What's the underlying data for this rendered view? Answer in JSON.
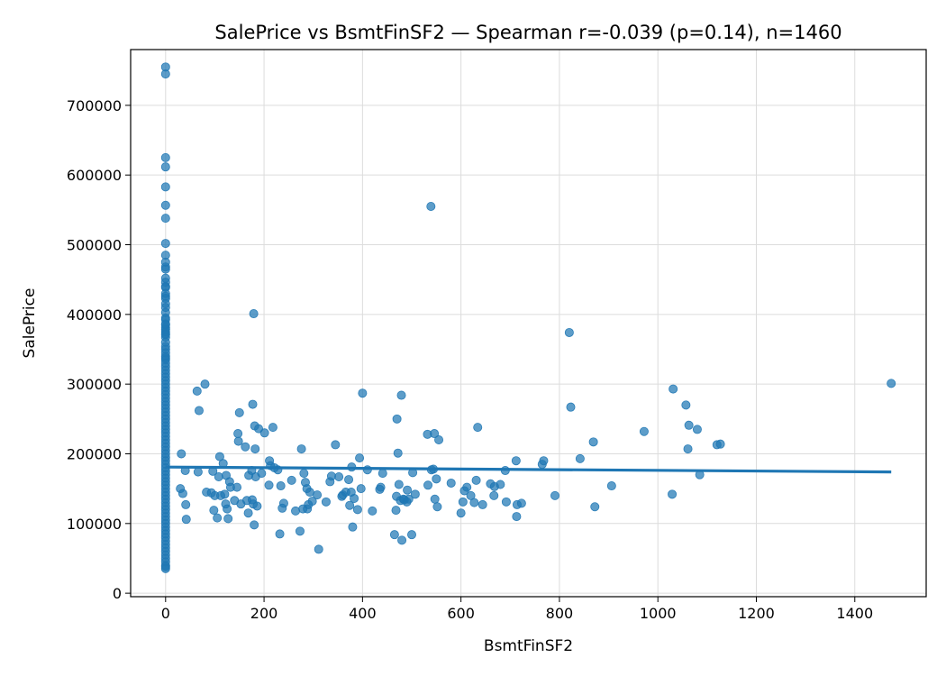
{
  "chart_data": {
    "type": "scatter",
    "title": "SalePrice vs BsmtFinSF2 — Spearman r=-0.039 (p=0.14), n=1460",
    "xlabel": "BsmtFinSF2",
    "ylabel": "SalePrice",
    "xlim": [
      -71,
      1545
    ],
    "ylim": [
      -5000,
      780000
    ],
    "xticks": [
      0,
      200,
      400,
      600,
      800,
      1000,
      1200,
      1400
    ],
    "yticks": [
      0,
      100000,
      200000,
      300000,
      400000,
      500000,
      600000,
      700000
    ],
    "grid": true,
    "point_color": "#1f77b4",
    "line_color": "#1f77b4",
    "series": [
      {
        "type": "scatter",
        "points": [
          [
            0,
            755000
          ],
          [
            0,
            745000
          ],
          [
            0,
            625000
          ],
          [
            0,
            611657
          ],
          [
            0,
            582933
          ],
          [
            0,
            556581
          ],
          [
            0,
            538000
          ],
          [
            0,
            501837
          ],
          [
            0,
            485000
          ],
          [
            0,
            475000
          ],
          [
            0,
            468000
          ],
          [
            0,
            465000
          ],
          [
            0,
            451950
          ],
          [
            0,
            446261
          ],
          [
            0,
            440000
          ],
          [
            0,
            438780
          ],
          [
            0,
            430000
          ],
          [
            0,
            426000
          ],
          [
            0,
            423000
          ],
          [
            0,
            415298
          ],
          [
            0,
            410000
          ],
          [
            0,
            402861
          ],
          [
            0,
            395000
          ],
          [
            0,
            392500
          ],
          [
            0,
            386250
          ],
          [
            0,
            385000
          ],
          [
            0,
            381000
          ],
          [
            0,
            378500
          ],
          [
            0,
            375000
          ],
          [
            0,
            372402
          ],
          [
            0,
            370878
          ],
          [
            0,
            367294
          ],
          [
            0,
            360000
          ],
          [
            0,
            354000
          ],
          [
            0,
            350000
          ],
          [
            0,
            345000
          ],
          [
            0,
            340000
          ],
          [
            0,
            337500
          ],
          [
            0,
            335000
          ],
          [
            0,
            330000
          ],
          [
            0,
            325000
          ],
          [
            0,
            320000
          ],
          [
            0,
            315000
          ],
          [
            0,
            310000
          ],
          [
            0,
            305000
          ],
          [
            0,
            300000
          ],
          [
            0,
            295000
          ],
          [
            0,
            290000
          ],
          [
            0,
            285000
          ],
          [
            0,
            280000
          ],
          [
            0,
            275000
          ],
          [
            0,
            270000
          ],
          [
            0,
            265000
          ],
          [
            0,
            260000
          ],
          [
            0,
            255000
          ],
          [
            0,
            250000
          ],
          [
            0,
            245000
          ],
          [
            0,
            240000
          ],
          [
            0,
            235000
          ],
          [
            0,
            230000
          ],
          [
            0,
            225000
          ],
          [
            0,
            220000
          ],
          [
            0,
            215000
          ],
          [
            0,
            210000
          ],
          [
            0,
            205000
          ],
          [
            0,
            200000
          ],
          [
            0,
            195000
          ],
          [
            0,
            190000
          ],
          [
            0,
            185000
          ],
          [
            0,
            180000
          ],
          [
            0,
            175000
          ],
          [
            0,
            170000
          ],
          [
            0,
            165000
          ],
          [
            0,
            160000
          ],
          [
            0,
            155000
          ],
          [
            0,
            150000
          ],
          [
            0,
            145000
          ],
          [
            0,
            140000
          ],
          [
            0,
            135000
          ],
          [
            0,
            130000
          ],
          [
            0,
            125000
          ],
          [
            0,
            120000
          ],
          [
            0,
            115000
          ],
          [
            0,
            110000
          ],
          [
            0,
            105000
          ],
          [
            0,
            100000
          ],
          [
            0,
            95000
          ],
          [
            0,
            90000
          ],
          [
            0,
            85000
          ],
          [
            0,
            80000
          ],
          [
            0,
            75000
          ],
          [
            0,
            70000
          ],
          [
            0,
            65000
          ],
          [
            0,
            60000
          ],
          [
            0,
            55000
          ],
          [
            0,
            50000
          ],
          [
            0,
            45000
          ],
          [
            0,
            40000
          ],
          [
            0,
            37900
          ],
          [
            0,
            35311
          ],
          [
            32,
            200000
          ],
          [
            30,
            150000
          ],
          [
            35,
            143000
          ],
          [
            40,
            176000
          ],
          [
            41,
            127000
          ],
          [
            42,
            106000
          ],
          [
            64,
            290000
          ],
          [
            66,
            174000
          ],
          [
            68,
            262000
          ],
          [
            80,
            300000
          ],
          [
            83,
            145000
          ],
          [
            93,
            144000
          ],
          [
            96,
            175000
          ],
          [
            98,
            119000
          ],
          [
            100,
            140000
          ],
          [
            105,
            108000
          ],
          [
            108,
            167000
          ],
          [
            110,
            196000
          ],
          [
            112,
            140000
          ],
          [
            117,
            186000
          ],
          [
            120,
            142000
          ],
          [
            122,
            128000
          ],
          [
            123,
            169000
          ],
          [
            125,
            121000
          ],
          [
            127,
            107000
          ],
          [
            130,
            160000
          ],
          [
            132,
            152000
          ],
          [
            140,
            133000
          ],
          [
            145,
            152000
          ],
          [
            147,
            229000
          ],
          [
            148,
            218000
          ],
          [
            150,
            259000
          ],
          [
            153,
            128000
          ],
          [
            162,
            210000
          ],
          [
            165,
            133000
          ],
          [
            168,
            115000
          ],
          [
            169,
            169000
          ],
          [
            175,
            176000
          ],
          [
            176,
            134000
          ],
          [
            177,
            271000
          ],
          [
            178,
            128000
          ],
          [
            179,
            401000
          ],
          [
            180,
            98000
          ],
          [
            181,
            240000
          ],
          [
            182,
            207000
          ],
          [
            183,
            167000
          ],
          [
            186,
            125000
          ],
          [
            189,
            236000
          ],
          [
            195,
            172000
          ],
          [
            201,
            230000
          ],
          [
            210,
            155000
          ],
          [
            211,
            190000
          ],
          [
            213,
            183000
          ],
          [
            218,
            238000
          ],
          [
            221,
            180000
          ],
          [
            228,
            177000
          ],
          [
            232,
            85000
          ],
          [
            234,
            154000
          ],
          [
            237,
            122000
          ],
          [
            240,
            129000
          ],
          [
            256,
            162000
          ],
          [
            264,
            118000
          ],
          [
            273,
            89000
          ],
          [
            276,
            207000
          ],
          [
            279,
            121000
          ],
          [
            281,
            172000
          ],
          [
            284,
            159000
          ],
          [
            287,
            150000
          ],
          [
            288,
            121000
          ],
          [
            290,
            127000
          ],
          [
            293,
            145000
          ],
          [
            298,
            132000
          ],
          [
            311,
            63000
          ],
          [
            308,
            141000
          ],
          [
            326,
            131000
          ],
          [
            334,
            160000
          ],
          [
            337,
            168000
          ],
          [
            345,
            213000
          ],
          [
            352,
            167000
          ],
          [
            358,
            139000
          ],
          [
            360,
            141000
          ],
          [
            366,
            145000
          ],
          [
            372,
            163000
          ],
          [
            374,
            126000
          ],
          [
            377,
            145000
          ],
          [
            378,
            181000
          ],
          [
            380,
            95000
          ],
          [
            383,
            136000
          ],
          [
            390,
            120000
          ],
          [
            394,
            194000
          ],
          [
            397,
            150000
          ],
          [
            400,
            287000
          ],
          [
            410,
            177000
          ],
          [
            420,
            118000
          ],
          [
            435,
            149000
          ],
          [
            437,
            152000
          ],
          [
            441,
            172000
          ],
          [
            465,
            84000
          ],
          [
            468,
            119000
          ],
          [
            469,
            139000
          ],
          [
            470,
            250000
          ],
          [
            472,
            201000
          ],
          [
            474,
            156000
          ],
          [
            477,
            133000
          ],
          [
            479,
            284000
          ],
          [
            480,
            76000
          ],
          [
            483,
            135000
          ],
          [
            485,
            134000
          ],
          [
            490,
            131000
          ],
          [
            491,
            148000
          ],
          [
            494,
            135000
          ],
          [
            500,
            84000
          ],
          [
            502,
            173000
          ],
          [
            507,
            142000
          ],
          [
            532,
            228000
          ],
          [
            533,
            155000
          ],
          [
            539,
            555000
          ],
          [
            540,
            177000
          ],
          [
            544,
            178000
          ],
          [
            546,
            229000
          ],
          [
            547,
            135000
          ],
          [
            550,
            164000
          ],
          [
            552,
            124000
          ],
          [
            555,
            220000
          ],
          [
            580,
            158000
          ],
          [
            600,
            115000
          ],
          [
            604,
            131000
          ],
          [
            607,
            147000
          ],
          [
            612,
            152000
          ],
          [
            620,
            140000
          ],
          [
            627,
            130000
          ],
          [
            631,
            162000
          ],
          [
            634,
            238000
          ],
          [
            644,
            127000
          ],
          [
            660,
            157000
          ],
          [
            667,
            140000
          ],
          [
            668,
            153000
          ],
          [
            680,
            156000
          ],
          [
            690,
            176000
          ],
          [
            692,
            131000
          ],
          [
            712,
            190000
          ],
          [
            713,
            110000
          ],
          [
            714,
            127000
          ],
          [
            723,
            129000
          ],
          [
            765,
            185000
          ],
          [
            768,
            190000
          ],
          [
            791,
            140000
          ],
          [
            820,
            374000
          ],
          [
            823,
            267000
          ],
          [
            842,
            193000
          ],
          [
            869,
            217000
          ],
          [
            872,
            124000
          ],
          [
            906,
            154000
          ],
          [
            972,
            232000
          ],
          [
            1029,
            142000
          ],
          [
            1031,
            293000
          ],
          [
            1057,
            270000
          ],
          [
            1061,
            207000
          ],
          [
            1063,
            241000
          ],
          [
            1080,
            235000
          ],
          [
            1085,
            170000
          ],
          [
            1120,
            213000
          ],
          [
            1127,
            214000
          ],
          [
            1474,
            301000
          ]
        ]
      },
      {
        "type": "line",
        "points": [
          [
            0,
            181000
          ],
          [
            1474,
            174000
          ]
        ]
      }
    ]
  }
}
